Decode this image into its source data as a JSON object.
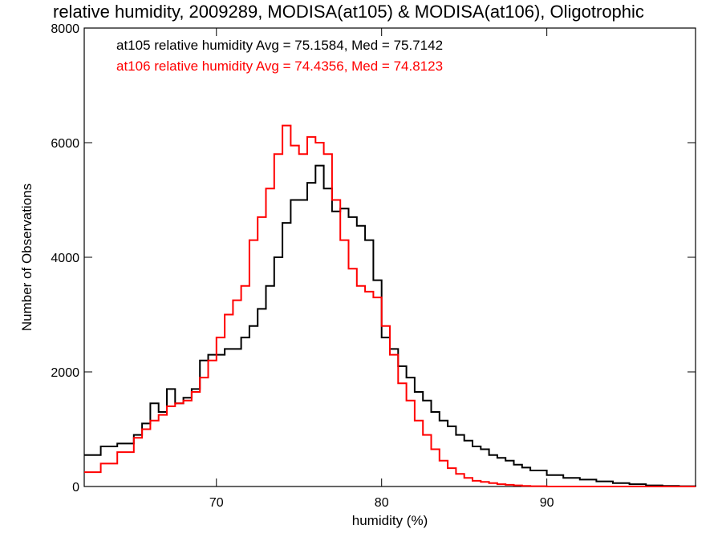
{
  "chart_data": {
    "type": "line",
    "title": "relative humidity, 2009289, MODISA(at105) & MODISA(at106), Oligotrophic",
    "xlabel": "humidity (%)",
    "ylabel": "Number of Observations",
    "xlim": [
      62,
      99
    ],
    "ylim": [
      0,
      8000
    ],
    "x_ticks": [
      70,
      80,
      90
    ],
    "y_ticks": [
      0,
      2000,
      4000,
      6000,
      8000
    ],
    "x_tick_labels": [
      "70",
      "80",
      "90"
    ],
    "y_tick_labels": [
      "0",
      "2000",
      "4000",
      "6000",
      "8000"
    ],
    "grid": false,
    "legend_position": "top-left",
    "series": [
      {
        "name": "at105 relative humidity Avg = 75.1584, Med = 75.7142",
        "color": "#000000",
        "x": [
          62,
          63,
          64,
          65,
          65.5,
          66,
          66.5,
          67,
          67.5,
          68,
          68.5,
          69,
          69.5,
          70,
          70.5,
          71,
          71.5,
          72,
          72.5,
          73,
          73.5,
          74,
          74.5,
          75,
          75.5,
          76,
          76.5,
          77,
          77.5,
          78,
          78.5,
          79,
          79.5,
          80,
          80.5,
          81,
          81.5,
          82,
          82.5,
          83,
          83.5,
          84,
          84.5,
          85,
          85.5,
          86,
          86.5,
          87,
          87.5,
          88,
          88.5,
          89,
          90,
          91,
          92,
          93,
          94,
          95,
          96,
          97,
          98,
          99
        ],
        "y": [
          550,
          700,
          750,
          900,
          1100,
          1450,
          1300,
          1700,
          1450,
          1550,
          1700,
          2200,
          2300,
          2300,
          2400,
          2400,
          2600,
          2800,
          3100,
          3500,
          4000,
          4600,
          5000,
          5000,
          5300,
          5600,
          5200,
          4800,
          4850,
          4700,
          4550,
          4300,
          3600,
          2600,
          2400,
          2100,
          1900,
          1650,
          1500,
          1300,
          1150,
          1050,
          900,
          800,
          700,
          650,
          550,
          500,
          450,
          380,
          330,
          280,
          200,
          150,
          120,
          90,
          60,
          40,
          20,
          10,
          5,
          0
        ]
      },
      {
        "name": "at106 relative humidity Avg = 74.4356, Med = 74.8123",
        "color": "#ff0000",
        "x": [
          62,
          63,
          64,
          65,
          65.5,
          66,
          66.5,
          67,
          67.5,
          68,
          68.5,
          69,
          69.5,
          70,
          70.5,
          71,
          71.5,
          72,
          72.5,
          73,
          73.5,
          74,
          74.5,
          75,
          75.5,
          76,
          76.5,
          77,
          77.5,
          78,
          78.5,
          79,
          79.5,
          80,
          80.5,
          81,
          81.5,
          82,
          82.5,
          83,
          83.5,
          84,
          84.5,
          85,
          85.5,
          86,
          86.5,
          87,
          87.5,
          88,
          88.5,
          89,
          90,
          91,
          92,
          93,
          94,
          95,
          96,
          97,
          98,
          99
        ],
        "y": [
          250,
          400,
          600,
          850,
          1000,
          1150,
          1250,
          1400,
          1450,
          1500,
          1650,
          1900,
          2200,
          2600,
          3000,
          3250,
          3500,
          4300,
          4700,
          5200,
          5800,
          6300,
          5950,
          5800,
          6100,
          6000,
          5800,
          5000,
          4300,
          3800,
          3500,
          3400,
          3300,
          2800,
          2300,
          1800,
          1500,
          1150,
          900,
          650,
          450,
          320,
          220,
          150,
          100,
          80,
          60,
          40,
          30,
          20,
          10,
          5,
          0,
          0,
          0,
          0,
          0,
          0,
          0,
          0,
          0,
          0
        ]
      }
    ]
  }
}
